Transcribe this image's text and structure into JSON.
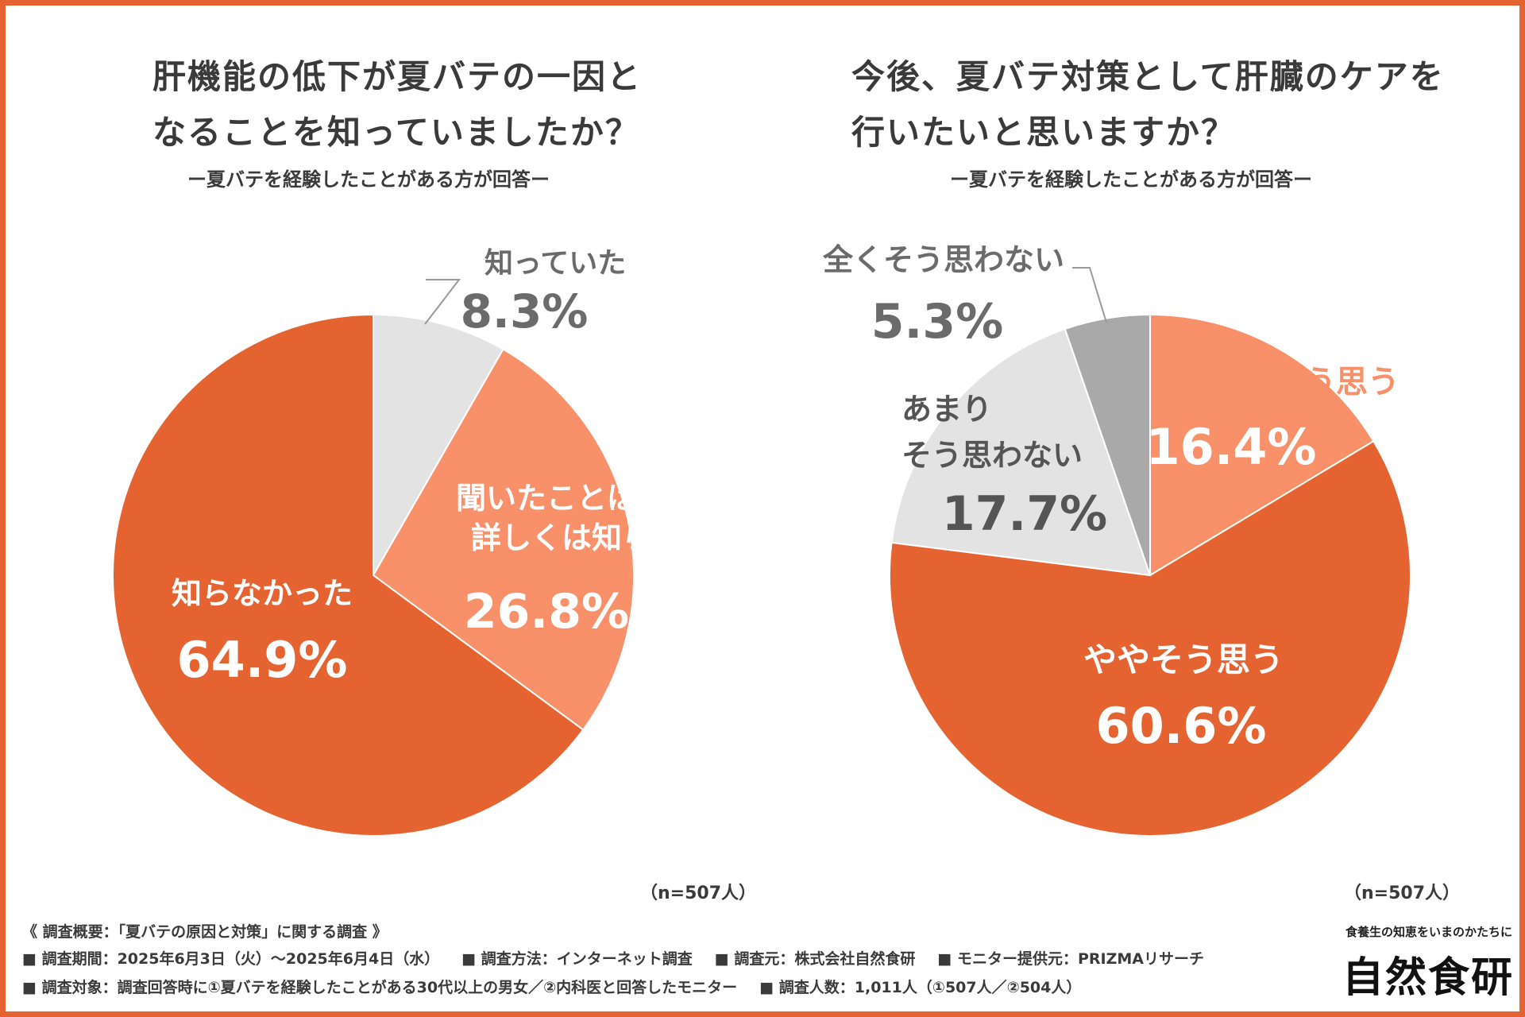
{
  "chart_data": [
    {
      "type": "pie",
      "title": "肝機能の低下が夏バテの一因となることを知っていましたか？",
      "title_lines": [
        "肝機能の低下が夏バテの一因と",
        "なることを知っていましたか？"
      ],
      "subtitle": "ー夏バテを経験したことがある方が回答ー",
      "n_label": "（n=507人）",
      "slices": [
        {
          "label": "知っていた",
          "label_lines": [
            "知っていた"
          ],
          "value": 8.3,
          "value_label": "8.3%",
          "color": "#e3e3e3"
        },
        {
          "label": "聞いたことはあるが詳しくは知らない",
          "label_lines": [
            "聞いたことはあるが",
            "詳しくは知らない"
          ],
          "value": 26.8,
          "value_label": "26.8%",
          "color": "#f8906a"
        },
        {
          "label": "知らなかった",
          "label_lines": [
            "知らなかった"
          ],
          "value": 64.9,
          "value_label": "64.9%",
          "color": "#e56331"
        }
      ]
    },
    {
      "type": "pie",
      "title": "今後、夏バテ対策として肝臓のケアを行いたいと思いますか？",
      "title_lines": [
        "今後、夏バテ対策として肝臓のケアを",
        "行いたいと思いますか？"
      ],
      "subtitle": "ー夏バテを経験したことがある方が回答ー",
      "n_label": "（n=507人）",
      "slices": [
        {
          "label": "とてもそう思う",
          "label_lines": [
            "とてもそう思う"
          ],
          "value": 16.4,
          "value_label": "16.4%",
          "color": "#f8906a"
        },
        {
          "label": "ややそう思う",
          "label_lines": [
            "ややそう思う"
          ],
          "value": 60.6,
          "value_label": "60.6%",
          "color": "#e56331"
        },
        {
          "label": "あまりそう思わない",
          "label_lines": [
            "あまり",
            "そう思わない"
          ],
          "value": 17.7,
          "value_label": "17.7%",
          "color": "#e3e3e3"
        },
        {
          "label": "全くそう思わない",
          "label_lines": [
            "全くそう思わない"
          ],
          "value": 5.3,
          "value_label": "5.3%",
          "color": "#a9a9a9"
        }
      ]
    }
  ],
  "colors": {
    "accent": "#e56331",
    "light_orange": "#f8906a",
    "light_gray": "#e3e3e3",
    "mid_gray": "#a9a9a9",
    "text_dark": "#3a3a3a",
    "text_gray": "#6b6b6b"
  },
  "footer": {
    "overview": "《 調査概要：「夏バテの原因と対策」に関する調査 》",
    "period": "■ 調査期間：2025年6月3日（火）～2025年6月4日（水）",
    "method": "■ 調査方法：インターネット調査",
    "organizer": "■ 調査元：株式会社自然食研",
    "provider": "■ モニター提供元：PRIZMAリサーチ",
    "target": "■ 調査対象：調査回答時に①夏バテを経験したことがある30代以上の男女／②内科医と回答したモニター",
    "count": "■ 調査人数：1,011人（①507人／②504人）"
  },
  "logo": {
    "tagline": "食養生の知恵をいまのかたちに",
    "name": "自然食研"
  }
}
